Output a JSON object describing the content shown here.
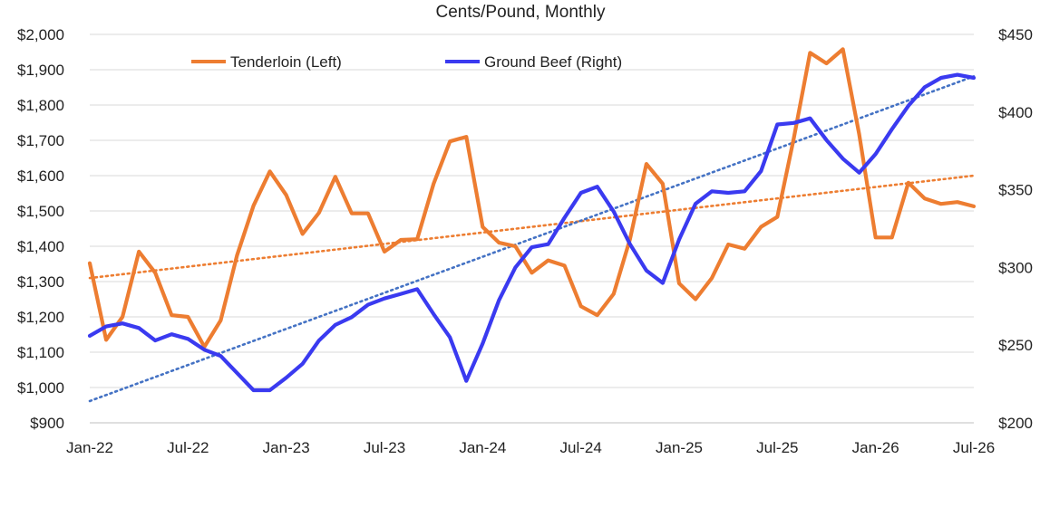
{
  "chart_data": {
    "type": "line",
    "title": "Cents/Pound, Monthly",
    "left_axis": {
      "min": 900,
      "max": 2000,
      "step": 100,
      "tick_labels": [
        "$900",
        "$1,000",
        "$1,100",
        "$1,200",
        "$1,300",
        "$1,400",
        "$1,500",
        "$1,600",
        "$1,700",
        "$1,800",
        "$1,900",
        "$2,000"
      ]
    },
    "right_axis": {
      "min": 200,
      "max": 450,
      "step": 50,
      "tick_labels": [
        "$200",
        "$250",
        "$300",
        "$350",
        "$400",
        "$450"
      ]
    },
    "x_tick_labels": [
      "Jan-22",
      "Jul-22",
      "Jan-23",
      "Jul-23",
      "Jan-24",
      "Jul-24",
      "Jan-25",
      "Jul-25",
      "Jan-26",
      "Jul-26"
    ],
    "grid": true,
    "legend_position": "top-inside",
    "series": [
      {
        "name": "Tenderloin (Left)",
        "axis": "left",
        "color": "#ED7D31",
        "values": [
          1352,
          1135,
          1200,
          1385,
          1325,
          1205,
          1200,
          1115,
          1190,
          1375,
          1515,
          1612,
          1545,
          1435,
          1495,
          1597,
          1493,
          1493,
          1385,
          1418,
          1420,
          1577,
          1697,
          1710,
          1455,
          1410,
          1400,
          1325,
          1360,
          1345,
          1230,
          1205,
          1265,
          1420,
          1633,
          1577,
          1295,
          1250,
          1310,
          1405,
          1393,
          1455,
          1483,
          1705,
          1948,
          1918,
          1958,
          1717,
          1425,
          1425,
          1580,
          1535,
          1520,
          1525,
          1513
        ]
      },
      {
        "name": "Ground Beef (Right)",
        "axis": "right",
        "color": "#3A3AF0",
        "values": [
          256,
          262,
          264,
          261,
          253,
          257,
          254,
          247,
          243,
          232,
          221,
          221,
          229,
          238,
          253,
          263,
          268,
          276,
          280,
          283,
          286,
          270,
          255,
          227,
          251,
          279,
          300,
          313,
          315,
          332,
          348,
          352,
          336,
          315,
          298,
          290,
          318,
          341,
          349,
          348,
          349,
          362,
          392,
          393,
          396,
          382,
          370,
          361,
          373,
          389,
          404,
          416,
          422,
          424,
          422
        ]
      },
      {
        "name": "",
        "type": "trend",
        "axis": "left",
        "color": "#ED7D31",
        "values": [
          1310,
          1600
        ]
      },
      {
        "name": "",
        "type": "trend",
        "axis": "right",
        "color": "#4472C4",
        "values": [
          214,
          423
        ]
      }
    ]
  }
}
